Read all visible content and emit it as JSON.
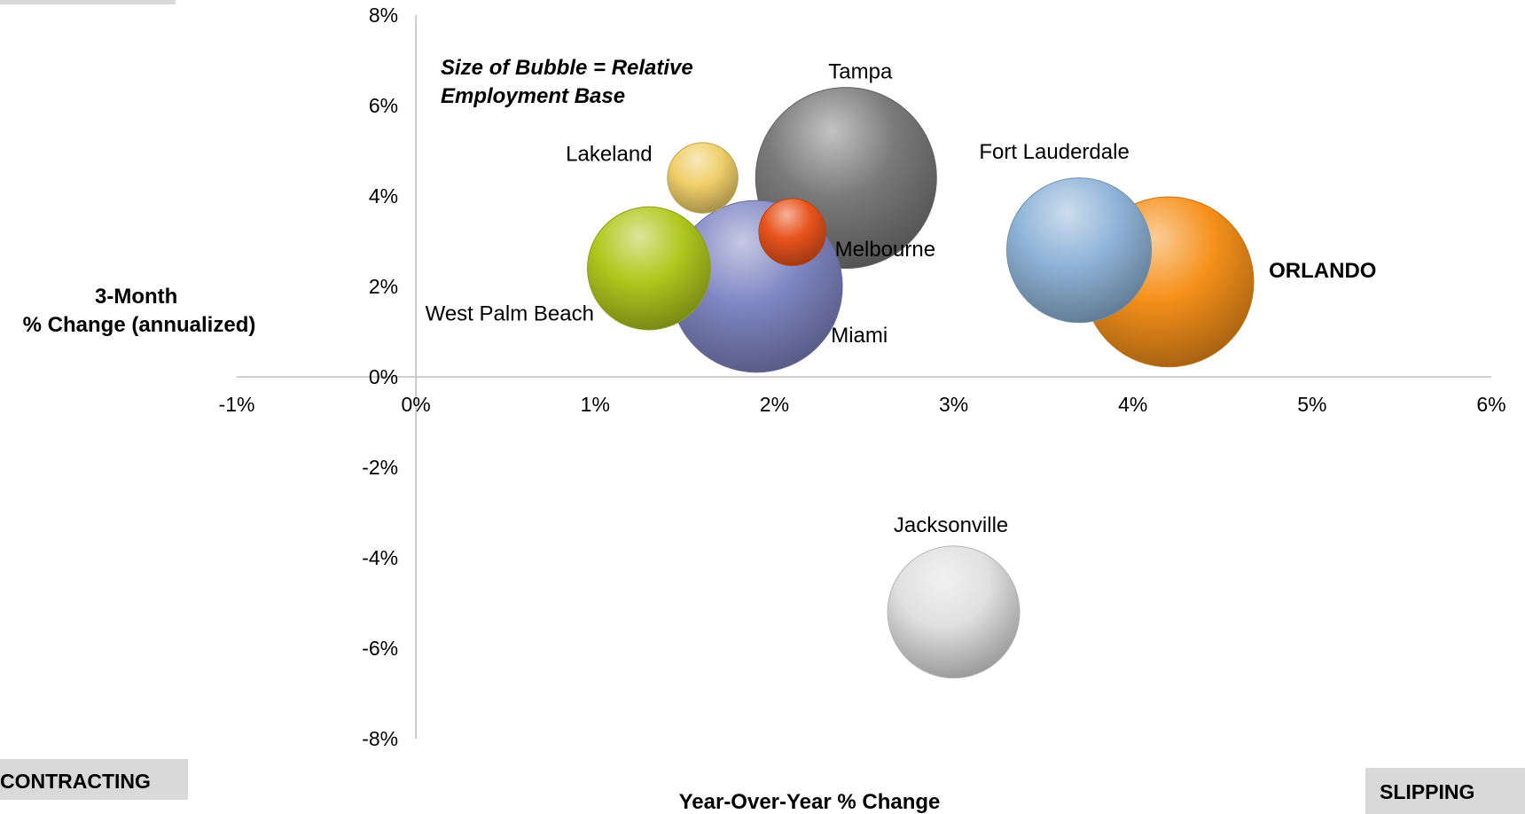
{
  "chart_data": {
    "type": "bubble",
    "xlabel": "Year-Over-Year % Change",
    "ylabel_lines": [
      "3-Month",
      "% Change (annualized)"
    ],
    "annotation_lines": [
      "Size of Bubble = Relative",
      "Employment Base"
    ],
    "xlim": [
      -1,
      6
    ],
    "ylim": [
      -8,
      8
    ],
    "x_ticks": [
      -1,
      0,
      1,
      2,
      3,
      4,
      5,
      6
    ],
    "y_ticks": [
      -8,
      -6,
      -4,
      -2,
      0,
      2,
      4,
      6,
      8
    ],
    "x_tick_labels": [
      "-1%",
      "0%",
      "1%",
      "2%",
      "3%",
      "4%",
      "5%",
      "6%"
    ],
    "y_tick_labels": [
      "-8%",
      "-6%",
      "-4%",
      "-2%",
      "0%",
      "2%",
      "4%",
      "6%",
      "8%"
    ],
    "grid": false,
    "points": [
      {
        "name": "Tampa",
        "x": 2.4,
        "y": 4.4,
        "size": 1.0,
        "color": "#7a7a7a"
      },
      {
        "name": "Miami",
        "x": 1.9,
        "y": 2.0,
        "size": 0.95,
        "color": "#7f86c2"
      },
      {
        "name": "ORLANDO",
        "x": 4.2,
        "y": 2.1,
        "size": 0.94,
        "color": "#f5901a",
        "bold": true
      },
      {
        "name": "Fort Lauderdale",
        "x": 3.7,
        "y": 2.8,
        "size": 0.8,
        "color": "#8fb4d8"
      },
      {
        "name": "West Palm Beach",
        "x": 1.3,
        "y": 2.4,
        "size": 0.68,
        "color": "#b0c81e"
      },
      {
        "name": "Lakeland",
        "x": 1.6,
        "y": 4.4,
        "size": 0.39,
        "color": "#f0cf6a"
      },
      {
        "name": "Melbourne",
        "x": 2.1,
        "y": 3.2,
        "size": 0.37,
        "color": "#e8531c"
      },
      {
        "name": "Jacksonville",
        "x": 3.0,
        "y": -5.2,
        "size": 0.73,
        "color": "#e0e0e0"
      }
    ]
  },
  "corner_labels": {
    "contracting": "CONTRACTING",
    "slipping": "SLIPPING"
  }
}
